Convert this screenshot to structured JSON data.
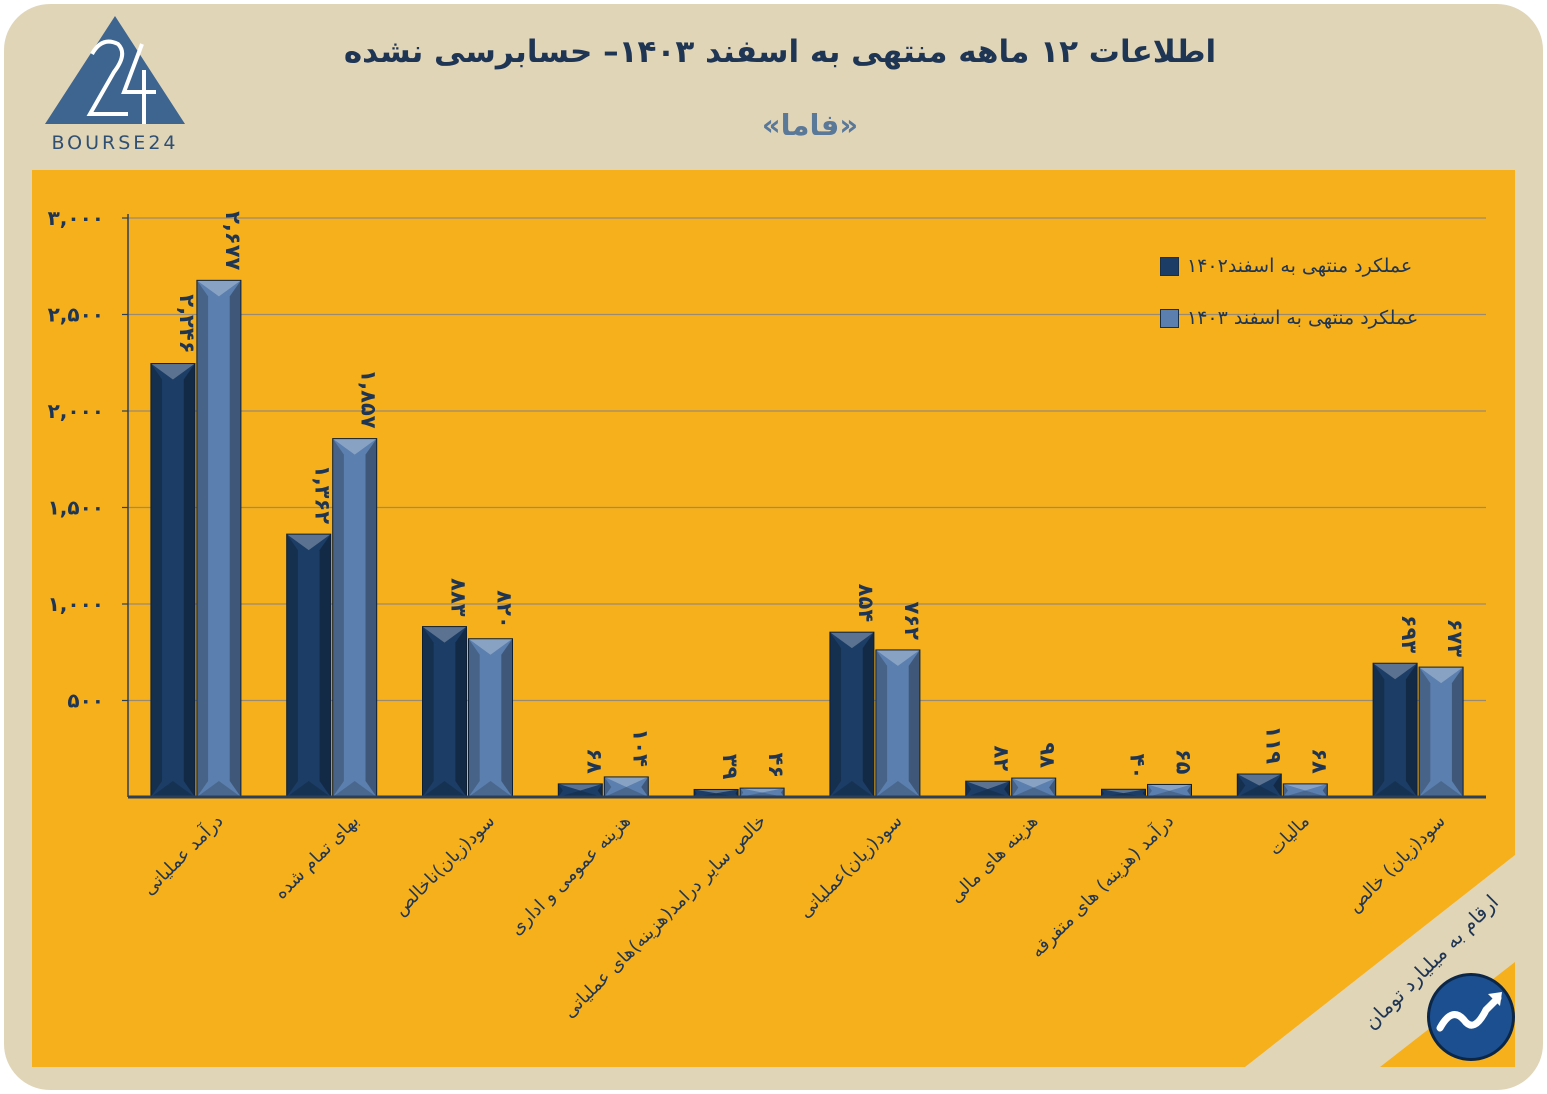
{
  "header": {
    "title": "اطلاعات ۱۲ ماهه منتهی به اسفند  ۱۴۰۳– حسابرسی نشده",
    "subtitle": "«فاما»",
    "logo_text": "BOURSE24"
  },
  "footer": {
    "units_note": "ارقام به میلیارد تومان"
  },
  "colors": {
    "frame_bg": "#e1d5b8",
    "panel_bg": "#f5b01c",
    "series_1402": "#1c3d66",
    "series_1403": "#5b7fae",
    "text": "#1f3554"
  },
  "chart_data": {
    "type": "bar",
    "categories": [
      "درآمد عملیاتی",
      "بهای تمام شده",
      "سود(زیان)ناخالص",
      "هزینه عمومی و اداری",
      "خالص سایر درامد(هزینه)های عملیاتی",
      "سود(زیان)عملیاتی",
      "هزینه های مالی",
      "درآمد (هزینه) های متفرقه",
      "مالیات",
      "سود(زیان) خالص"
    ],
    "series": [
      {
        "name": "عملکرد منتهی به اسفند۱۴۰۲",
        "values": [
          2246,
          1362,
          883,
          68,
          39,
          854,
          82,
          40,
          119,
          693
        ],
        "labels": [
          "۲,۲۴۶",
          "۱,۳۶۲",
          "۸۸۳",
          "۶۸",
          "۳۹",
          "۸۵۴",
          "۸۲",
          "۴۰",
          "۱۱۹",
          "۶۹۳"
        ]
      },
      {
        "name": "عملکرد منتهی به اسفند ۱۴۰۳",
        "values": [
          2677,
          1857,
          820,
          104,
          46,
          762,
          98,
          65,
          68,
          673
        ],
        "labels": [
          "۲,۶۷۷",
          "۱,۸۵۷",
          "۸۲۰",
          "۱۰۴",
          "۴۶",
          "۷۶۲",
          "۹۸",
          "۶۵",
          "۶۸",
          "۶۷۳"
        ]
      }
    ],
    "y_ticks": [
      {
        "value": 500,
        "label": "۵۰۰"
      },
      {
        "value": 1000,
        "label": "۱,۰۰۰"
      },
      {
        "value": 1500,
        "label": "۱,۵۰۰"
      },
      {
        "value": 2000,
        "label": "۲,۰۰۰"
      },
      {
        "value": 2500,
        "label": "۲,۵۰۰"
      },
      {
        "value": 3000,
        "label": "۳,۰۰۰"
      }
    ],
    "ylim": [
      0,
      3000
    ],
    "grid": true,
    "legend_position": "top-right"
  }
}
